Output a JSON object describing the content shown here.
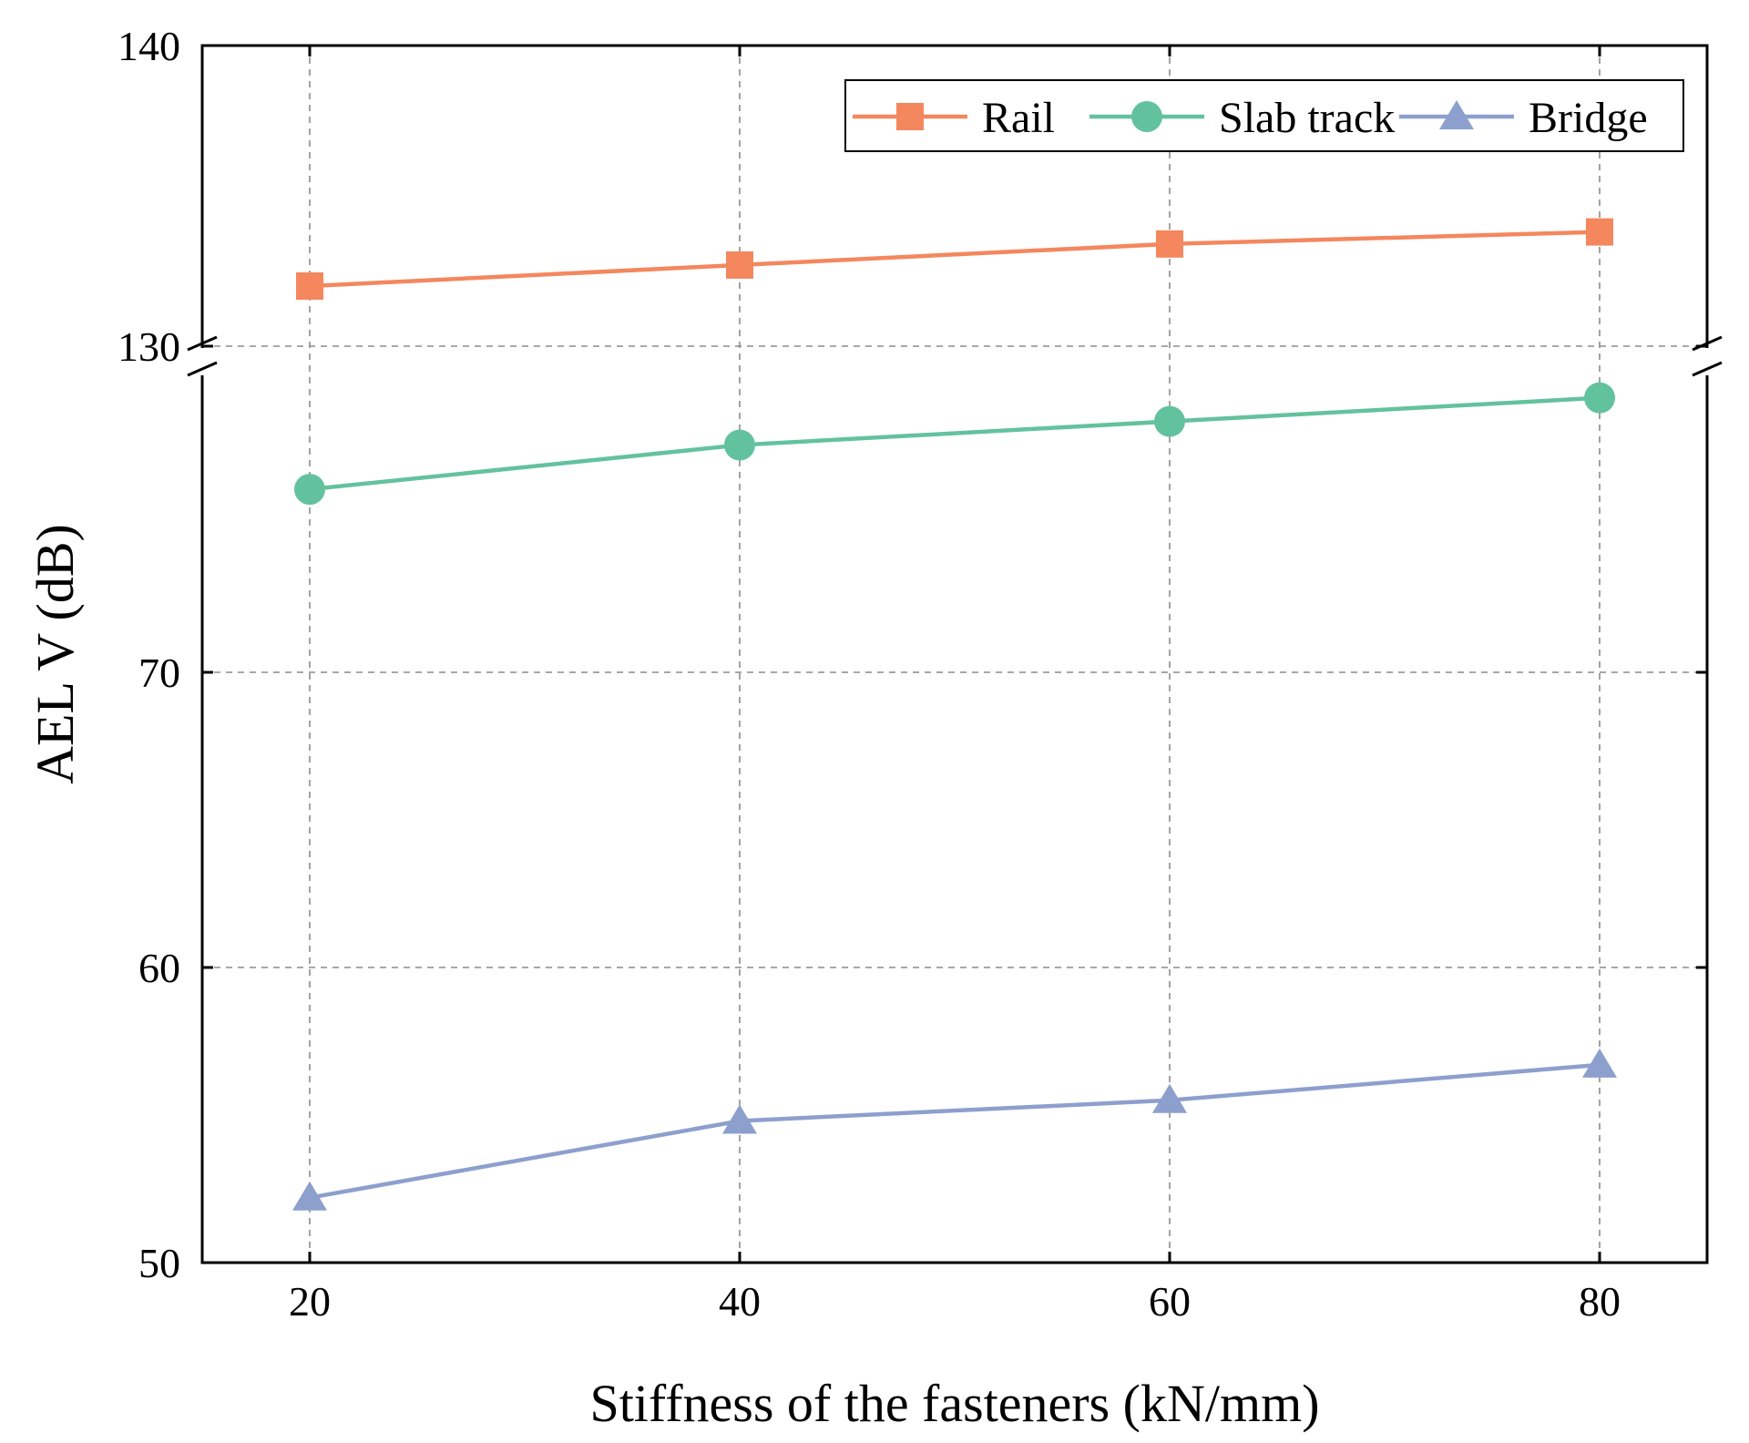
{
  "chart_data": {
    "type": "line",
    "title": "",
    "xlabel": "Stiffness of the fasteners (kN/mm)",
    "ylabel": "AEL V (dB)",
    "x": [
      20,
      40,
      60,
      80
    ],
    "x_ticks": [
      20,
      40,
      60,
      80
    ],
    "xlim": [
      15,
      85
    ],
    "y_axis_break": true,
    "y_segments": [
      {
        "range": [
          50,
          80
        ],
        "ticks": [
          50,
          60,
          70
        ]
      },
      {
        "range": [
          130,
          140
        ],
        "ticks": [
          130,
          140
        ]
      }
    ],
    "grid": true,
    "legend_position": "top-right",
    "series": [
      {
        "name": "Rail",
        "marker": "square",
        "color": "#F4875E",
        "values": [
          132.0,
          132.7,
          133.4,
          133.8
        ]
      },
      {
        "name": "Slab track",
        "marker": "circle",
        "color": "#63C29E",
        "values": [
          76.2,
          77.7,
          78.5,
          79.3
        ]
      },
      {
        "name": "Bridge",
        "marker": "triangle",
        "color": "#8D9FCD",
        "values": [
          52.2,
          54.8,
          55.5,
          56.7
        ]
      }
    ]
  }
}
